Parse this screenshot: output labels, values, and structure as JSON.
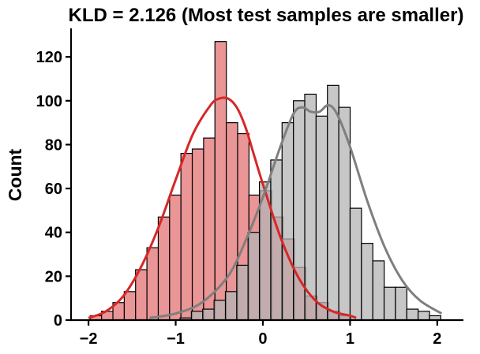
{
  "chart_data": {
    "type": "histogram",
    "title": "KLD = 2.126 (Most test samples are smaller)",
    "xlabel": "",
    "ylabel": "Count",
    "xlim": [
      -2.2,
      2.3
    ],
    "ylim": [
      0,
      133
    ],
    "x_ticks": [
      -2,
      -1,
      0,
      1,
      2
    ],
    "x_tick_labels": [
      "−2",
      "−1",
      "0",
      "1",
      "2"
    ],
    "y_ticks": [
      0,
      20,
      40,
      60,
      80,
      100,
      120
    ],
    "y_tick_labels": [
      "0",
      "20",
      "40",
      "60",
      "80",
      "100",
      "120"
    ],
    "bin_width": 0.131,
    "series": [
      {
        "color": "#e8898b",
        "kde_color": "#d62728",
        "bins_start": [
          -1.98,
          -1.85,
          -1.72,
          -1.59,
          -1.46,
          -1.33,
          -1.2,
          -1.07,
          -0.94,
          -0.81,
          -0.68,
          -0.55,
          -0.42,
          -0.29,
          -0.16,
          -0.03,
          0.1,
          0.23,
          0.36,
          0.49,
          0.62,
          0.75,
          0.88
        ],
        "counts": [
          2,
          4,
          8,
          13,
          23,
          33,
          47,
          57,
          76,
          78,
          83,
          127,
          90,
          85,
          57,
          59,
          47,
          37,
          24,
          11,
          8,
          4,
          2
        ],
        "kde_x": [
          -2.0,
          -1.8,
          -1.6,
          -1.4,
          -1.2,
          -1.0,
          -0.8,
          -0.6,
          -0.5,
          -0.4,
          -0.3,
          -0.2,
          -0.1,
          0.0,
          0.2,
          0.4,
          0.6,
          0.8,
          1.0,
          1.07
        ],
        "kde_y": [
          1,
          4,
          11,
          24,
          42,
          64,
          85,
          98,
          101,
          101,
          97,
          88,
          75,
          62,
          38,
          20,
          9,
          4,
          2,
          1
        ]
      },
      {
        "color": "#b4b4b4",
        "kde_color": "#7f7f7f",
        "bins_start": [
          -0.95,
          -0.82,
          -0.69,
          -0.56,
          -0.43,
          -0.3,
          -0.17,
          -0.04,
          0.09,
          0.22,
          0.35,
          0.48,
          0.61,
          0.74,
          0.87,
          1.0,
          1.13,
          1.26,
          1.39,
          1.52,
          1.65,
          1.78,
          1.91
        ],
        "counts": [
          1,
          4,
          5,
          9,
          13,
          25,
          40,
          63,
          73,
          90,
          100,
          103,
          93,
          107,
          97,
          51,
          35,
          27,
          15,
          15,
          5,
          4,
          2
        ],
        "kde_x": [
          -1.3,
          -1.0,
          -0.7,
          -0.4,
          -0.2,
          0.0,
          0.2,
          0.35,
          0.45,
          0.55,
          0.65,
          0.75,
          0.85,
          1.0,
          1.2,
          1.4,
          1.6,
          1.8,
          2.05
        ],
        "kde_y": [
          1,
          3,
          8,
          20,
          36,
          56,
          79,
          94,
          97,
          95,
          95,
          98,
          94,
          79,
          54,
          33,
          18,
          9,
          3
        ]
      }
    ]
  }
}
